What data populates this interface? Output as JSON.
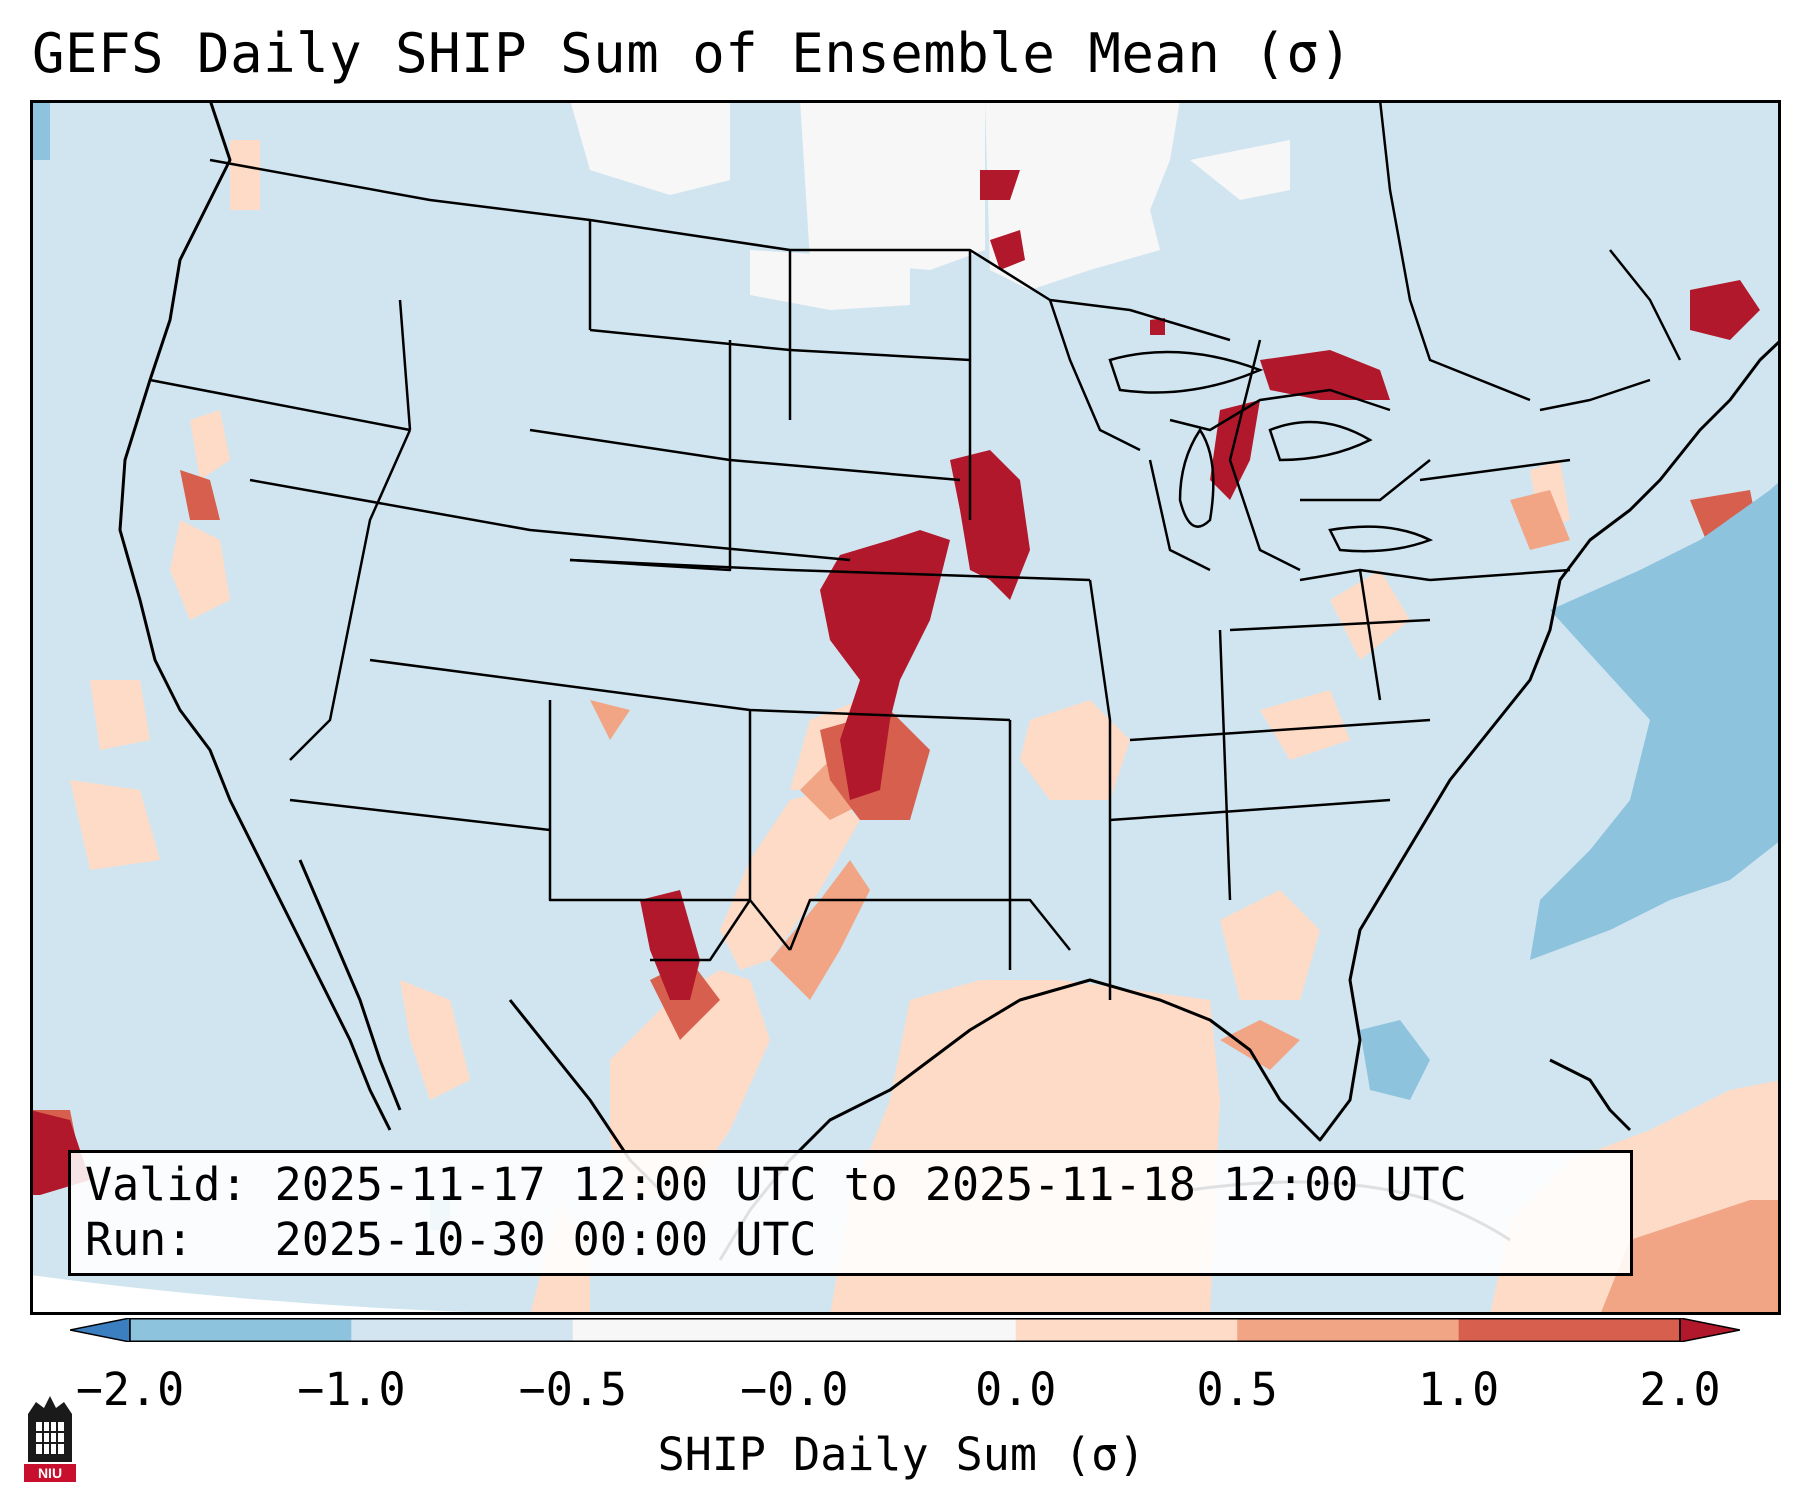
{
  "title": "GEFS Daily SHIP Sum of Ensemble Mean (σ)",
  "info": {
    "valid_label": "Valid:",
    "valid_value": "2025-11-17 12:00 UTC to 2025-11-18 12:00 UTC",
    "run_label": "Run:",
    "run_value": "2025-10-30 00:00 UTC"
  },
  "colorbar": {
    "label": "SHIP Daily Sum (σ)",
    "ticks": [
      "−2.0",
      "−1.0",
      "−0.5",
      "−0.0",
      "0.0",
      "0.5",
      "1.0",
      "2.0"
    ],
    "bin_colors": [
      "#3b7fc0",
      "#8ec3de",
      "#d2e5f0",
      "#f7f7f7",
      "#fddbc7",
      "#f2a585",
      "#d6604d",
      "#b2182b"
    ],
    "extend": "both"
  },
  "colors": {
    "background_field": "#d1e5f0",
    "no_data": "#ffffff",
    "border": "#000000"
  },
  "logo": {
    "text": "NIU",
    "color": "#c8102e"
  }
}
